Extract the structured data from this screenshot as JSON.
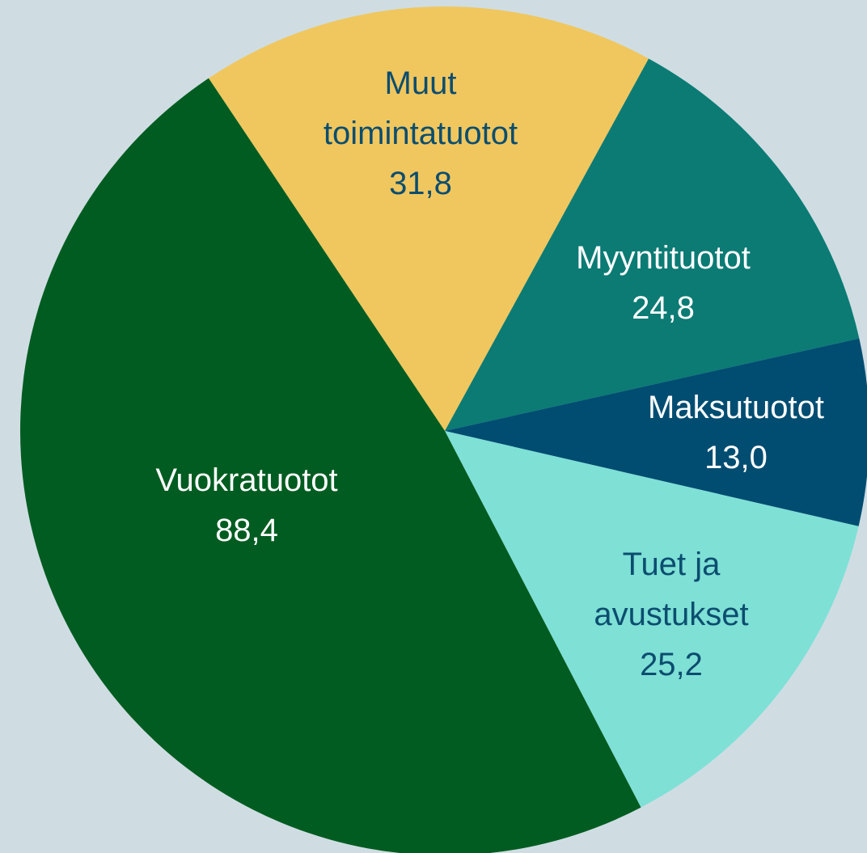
{
  "chart_data": {
    "type": "pie",
    "categories": [
      "Muut toimintatuotot",
      "Myyntituotot",
      "Maksutuotot",
      "Tuet ja avustukset",
      "Vuokratuotot"
    ],
    "values": [
      31.8,
      24.8,
      13.0,
      25.2,
      88.4
    ],
    "value_labels": [
      "31,8",
      "24,8",
      "13,0",
      "25,2",
      "88,4"
    ],
    "colors": [
      "#f0c75e",
      "#0b7b74",
      "#004d71",
      "#7fe0d6",
      "#005c20"
    ]
  }
}
